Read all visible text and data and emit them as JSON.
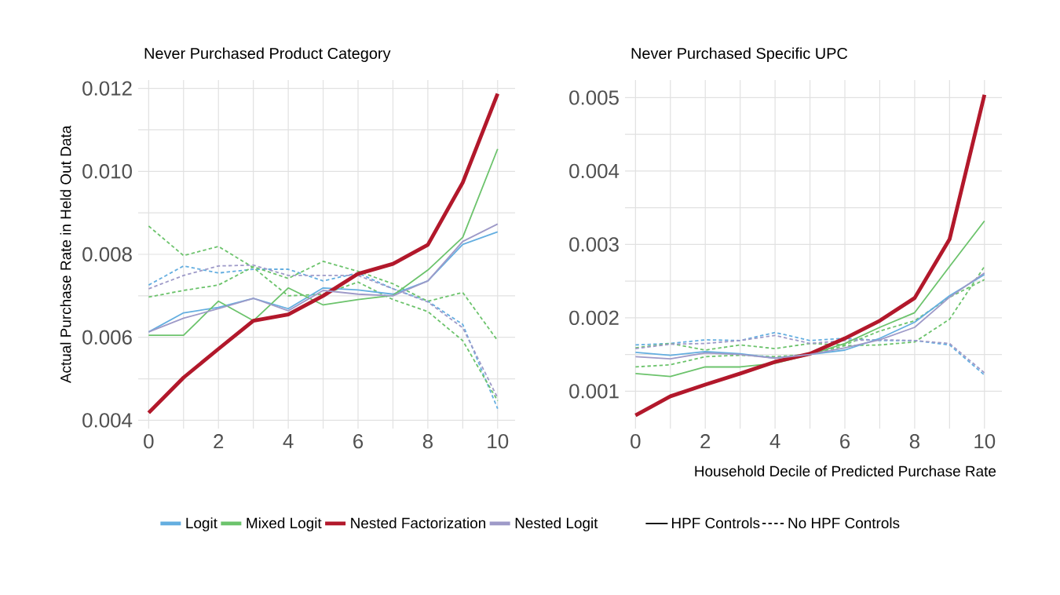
{
  "chart_data": [
    {
      "type": "line",
      "title": "Never Purchased Product Category",
      "ylabel": "Actual Purchase Rate in Held Out Data",
      "x": [
        0,
        1,
        2,
        3,
        4,
        5,
        6,
        7,
        8,
        9,
        10
      ],
      "xlim": [
        -0.3,
        10.5
      ],
      "ylim": [
        0.0038,
        0.0122
      ],
      "xticks": [
        {
          "value": 0,
          "label": "0"
        },
        {
          "value": 1,
          "label": null
        },
        {
          "value": 2,
          "label": "2"
        },
        {
          "value": 3,
          "label": null
        },
        {
          "value": 4,
          "label": "4"
        },
        {
          "value": 5,
          "label": null
        },
        {
          "value": 6,
          "label": "6"
        },
        {
          "value": 7,
          "label": null
        },
        {
          "value": 8,
          "label": "8"
        },
        {
          "value": 9,
          "label": null
        },
        {
          "value": 10,
          "label": "10"
        }
      ],
      "yticks": [
        {
          "value": 0.004,
          "label": "0.004"
        },
        {
          "value": 0.005,
          "label": null
        },
        {
          "value": 0.006,
          "label": "0.006"
        },
        {
          "value": 0.007,
          "label": null
        },
        {
          "value": 0.008,
          "label": "0.008"
        },
        {
          "value": 0.009,
          "label": null
        },
        {
          "value": 0.01,
          "label": "0.010"
        },
        {
          "value": 0.011,
          "label": null
        },
        {
          "value": 0.012,
          "label": "0.012"
        }
      ],
      "grid": true,
      "legend": "bottom",
      "annotations": [
        "HPF Controls",
        "No HPF Controls"
      ],
      "series": [
        {
          "name": "Logit",
          "color": "#64aee0",
          "line_style": "solid",
          "values": [
            0.00613,
            0.00659,
            0.00672,
            0.00694,
            0.00669,
            0.00719,
            0.00714,
            0.00704,
            0.00736,
            0.00824,
            0.00854
          ]
        },
        {
          "name": "Mixed Logit",
          "color": "#6cc36c",
          "line_style": "solid",
          "values": [
            0.00605,
            0.00605,
            0.00687,
            0.0064,
            0.00719,
            0.00678,
            0.00691,
            0.00701,
            0.00762,
            0.00841,
            0.01054
          ]
        },
        {
          "name": "Nested Factorization",
          "color": "#b2182b",
          "line_style": "solid",
          "values": [
            0.00418,
            0.00503,
            0.00572,
            0.0064,
            0.00655,
            0.007,
            0.00753,
            0.00777,
            0.00823,
            0.00973,
            0.01187
          ]
        },
        {
          "name": "Nested Logit",
          "color": "#9e9ac8",
          "line_style": "solid",
          "values": [
            0.00613,
            0.00646,
            0.00669,
            0.00694,
            0.00664,
            0.00713,
            0.00704,
            0.007,
            0.00736,
            0.00831,
            0.00873
          ]
        },
        {
          "color": "#64aee0",
          "line_style": "dashed",
          "values": [
            0.00726,
            0.00772,
            0.00755,
            0.00764,
            0.00764,
            0.00736,
            0.00755,
            0.00717,
            0.00687,
            0.00631,
            0.00428
          ]
        },
        {
          "color": "#6cc36c",
          "line_style": "dashed",
          "values": [
            0.00868,
            0.00797,
            0.00819,
            0.00768,
            0.007,
            0.00704,
            0.00733,
            0.00691,
            0.00662,
            0.00592,
            0.00447
          ]
        },
        {
          "color": "#6cc36c",
          "line_style": "dashed",
          "values": [
            0.00697,
            0.00713,
            0.00726,
            0.0077,
            0.00742,
            0.00783,
            0.00759,
            0.00729,
            0.00687,
            0.00708,
            0.00592
          ]
        },
        {
          "color": "#9e9ac8",
          "line_style": "dashed",
          "values": [
            0.00717,
            0.00749,
            0.00772,
            0.00774,
            0.00749,
            0.00749,
            0.00749,
            0.00717,
            0.00685,
            0.00623,
            0.00454
          ]
        }
      ]
    },
    {
      "type": "line",
      "title": "Never Purchased Specific UPC",
      "xlabel": "Household Decile of Predicted Purchase Rate",
      "x": [
        0,
        1,
        2,
        3,
        4,
        5,
        6,
        7,
        8,
        9,
        10
      ],
      "xlim": [
        -0.3,
        10.5
      ],
      "ylim": [
        0.00049,
        0.00524
      ],
      "xticks": [
        {
          "value": 0,
          "label": "0"
        },
        {
          "value": 1,
          "label": null
        },
        {
          "value": 2,
          "label": "2"
        },
        {
          "value": 3,
          "label": null
        },
        {
          "value": 4,
          "label": "4"
        },
        {
          "value": 5,
          "label": null
        },
        {
          "value": 6,
          "label": "6"
        },
        {
          "value": 7,
          "label": null
        },
        {
          "value": 8,
          "label": "8"
        },
        {
          "value": 9,
          "label": null
        },
        {
          "value": 10,
          "label": "10"
        }
      ],
      "yticks": [
        {
          "value": 0.001,
          "label": "0.001"
        },
        {
          "value": 0.0015,
          "label": null
        },
        {
          "value": 0.002,
          "label": "0.002"
        },
        {
          "value": 0.0025,
          "label": null
        },
        {
          "value": 0.003,
          "label": "0.003"
        },
        {
          "value": 0.0035,
          "label": null
        },
        {
          "value": 0.004,
          "label": "0.004"
        },
        {
          "value": 0.0045,
          "label": null
        },
        {
          "value": 0.005,
          "label": "0.005"
        }
      ],
      "grid": true,
      "series": [
        {
          "color": "#64aee0",
          "line_style": "solid",
          "values": [
            0.00153,
            0.00149,
            0.00154,
            0.00151,
            0.00145,
            0.0015,
            0.00156,
            0.00172,
            0.00194,
            0.0023,
            0.00259
          ]
        },
        {
          "color": "#6cc36c",
          "line_style": "solid",
          "values": [
            0.00124,
            0.0012,
            0.00133,
            0.00133,
            0.00138,
            0.0015,
            0.00165,
            0.00187,
            0.00207,
            0.0027,
            0.00332
          ]
        },
        {
          "color": "#b2182b",
          "line_style": "solid",
          "values": [
            0.00067,
            0.00093,
            0.00109,
            0.00124,
            0.0014,
            0.00151,
            0.00172,
            0.00196,
            0.00227,
            0.00307,
            0.00504
          ]
        },
        {
          "color": "#9e9ac8",
          "line_style": "solid",
          "values": [
            0.00147,
            0.00144,
            0.00152,
            0.0015,
            0.00145,
            0.0015,
            0.00159,
            0.0017,
            0.00187,
            0.00228,
            0.00261
          ]
        },
        {
          "color": "#64aee0",
          "line_style": "dashed",
          "values": [
            0.00163,
            0.00165,
            0.0017,
            0.00169,
            0.0018,
            0.00169,
            0.00172,
            0.00169,
            0.00169,
            0.00163,
            0.00122
          ]
        },
        {
          "color": "#6cc36c",
          "line_style": "dashed",
          "values": [
            0.00159,
            0.00165,
            0.00156,
            0.00163,
            0.00158,
            0.00165,
            0.00163,
            0.00182,
            0.00196,
            0.00228,
            0.00252
          ]
        },
        {
          "color": "#6cc36c",
          "line_style": "dashed",
          "values": [
            0.00133,
            0.00136,
            0.00147,
            0.00149,
            0.00147,
            0.0015,
            0.00162,
            0.00163,
            0.00167,
            0.00198,
            0.0027
          ]
        },
        {
          "color": "#9e9ac8",
          "line_style": "dashed",
          "values": [
            0.00158,
            0.00164,
            0.00165,
            0.00169,
            0.00176,
            0.00165,
            0.00169,
            0.0017,
            0.00169,
            0.00165,
            0.00125
          ]
        }
      ]
    }
  ]
}
